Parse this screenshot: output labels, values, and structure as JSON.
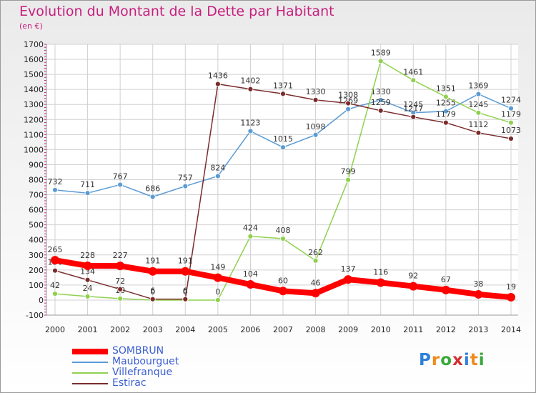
{
  "title": "Evolution du Montant de la Dette par Habitant",
  "subtitle": "(en €)",
  "logo": {
    "text": "Proxiti",
    "letters": [
      "P",
      "r",
      "o",
      "x",
      "i",
      "t",
      "i"
    ],
    "colors": [
      "#2f7fd8",
      "#f08a1c",
      "#3aa83a",
      "#d13030",
      "#2f7fd8",
      "#f08a1c",
      "#3aa83a"
    ]
  },
  "chart_data": {
    "type": "line",
    "title": "Evolution du Montant de la Dette par Habitant",
    "subtitle": "(en €)",
    "x": [
      "2000",
      "2001",
      "2002",
      "2003",
      "2004",
      "2005",
      "2006",
      "2007",
      "2008",
      "2009",
      "2010",
      "2011",
      "2012",
      "2013",
      "2014"
    ],
    "ylim": [
      -100,
      1700
    ],
    "yticks": [
      -100,
      0,
      100,
      200,
      300,
      400,
      500,
      600,
      700,
      800,
      900,
      1000,
      1100,
      1200,
      1300,
      1400,
      1500,
      1600,
      1700
    ],
    "grid": true,
    "legend_position": "bottom-left",
    "series": [
      {
        "name": "Maubourguet",
        "color": "#5b9bd5",
        "values": [
          732,
          711,
          767,
          686,
          757,
          824,
          1123,
          1015,
          1098,
          1269,
          1330,
          1245,
          1255,
          1369,
          1274
        ],
        "labels": [
          "732",
          "711",
          "767",
          "686",
          "757",
          "824",
          "1123",
          "1015",
          "1098",
          "1269",
          "1330",
          "1245",
          "1255",
          "1369",
          "1274"
        ]
      },
      {
        "name": "Villefranque",
        "color": "#8fd14f",
        "values": [
          42,
          24,
          10,
          0,
          0,
          0,
          424,
          408,
          262,
          799,
          1589,
          1461,
          1351,
          1245,
          1179
        ],
        "labels": [
          "42",
          "24",
          "10",
          "0",
          "0",
          "0",
          "424",
          "408",
          "262",
          "799",
          "1589",
          "1461",
          "1351",
          "1245",
          "1179"
        ]
      },
      {
        "name": "Estirac",
        "color": "#7b2c2c",
        "values": [
          196,
          134,
          72,
          6,
          6,
          1436,
          1402,
          1371,
          1330,
          1308,
          1259,
          1217,
          1179,
          1112,
          1073
        ],
        "labels": [
          "196",
          "134",
          "72",
          "6",
          "6",
          "1436",
          "1402",
          "1371",
          "1330",
          "1308",
          "1259",
          "1217",
          "1179",
          "1112",
          "1073"
        ]
      },
      {
        "name": "SOMBRUN",
        "color": "#ff0000",
        "values": [
          265,
          228,
          227,
          191,
          191,
          149,
          104,
          60,
          46,
          137,
          116,
          92,
          67,
          38,
          19
        ],
        "labels": [
          "265",
          "228",
          "227",
          "191",
          "191",
          "149",
          "104",
          "60",
          "46",
          "137",
          "116",
          "92",
          "67",
          "38",
          "19"
        ]
      }
    ],
    "legend": [
      "SOMBRUN",
      "Maubourguet",
      "Villefranque",
      "Estirac"
    ]
  }
}
